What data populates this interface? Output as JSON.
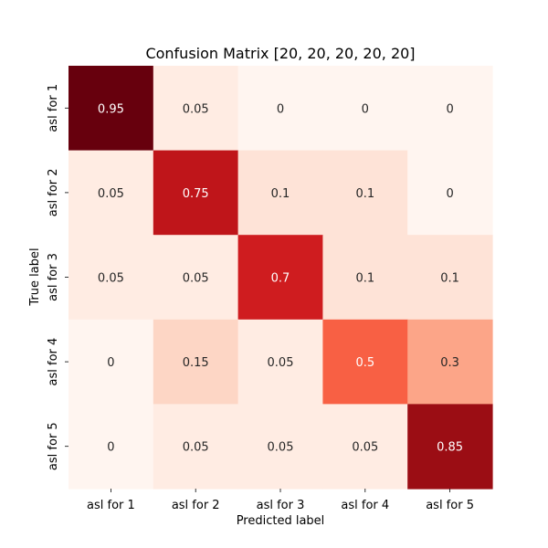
{
  "chart_data": {
    "type": "heatmap",
    "title": "Confusion Matrix [20, 20, 20, 20, 20]",
    "xlabel": "Predicted label",
    "ylabel": "True label",
    "x_categories": [
      "asl for 1",
      "asl for 2",
      "asl for 3",
      "asl for 4",
      "asl for 5"
    ],
    "y_categories": [
      "asl for 1",
      "asl for 2",
      "asl for 3",
      "asl for 4",
      "asl for 5"
    ],
    "values": [
      [
        0.95,
        0.05,
        0,
        0,
        0
      ],
      [
        0.05,
        0.75,
        0.1,
        0.1,
        0
      ],
      [
        0.05,
        0.05,
        0.7,
        0.1,
        0.1
      ],
      [
        0,
        0.15,
        0.05,
        0.5,
        0.3
      ],
      [
        0,
        0.05,
        0.05,
        0.05,
        0.85
      ]
    ],
    "colormap": "Reds",
    "value_range": [
      0,
      0.95
    ],
    "colorbar": false,
    "grid": false
  }
}
